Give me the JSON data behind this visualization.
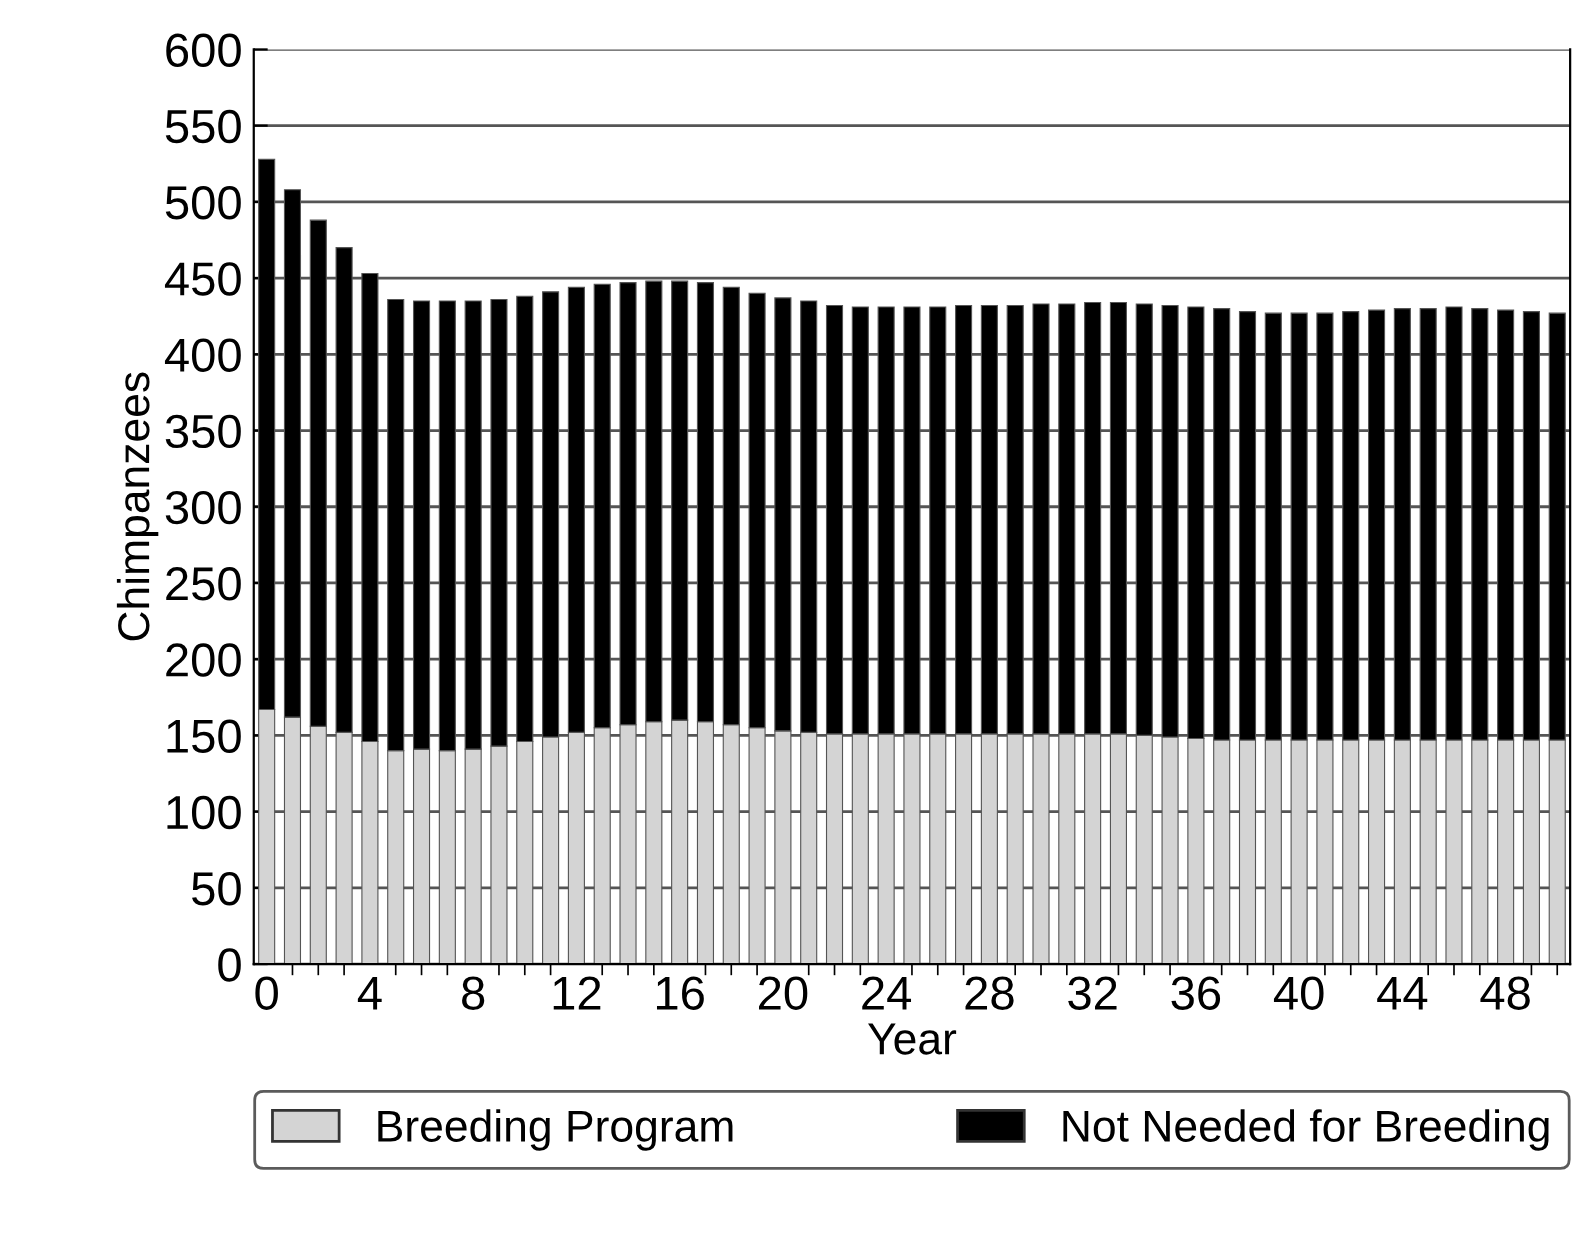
{
  "chart_data": {
    "type": "bar",
    "stacked": true,
    "xlabel": "Year",
    "ylabel": "Chimpanzees",
    "x": [
      0,
      1,
      2,
      3,
      4,
      5,
      6,
      7,
      8,
      9,
      10,
      11,
      12,
      13,
      14,
      15,
      16,
      17,
      18,
      19,
      20,
      21,
      22,
      23,
      24,
      25,
      26,
      27,
      28,
      29,
      30,
      31,
      32,
      33,
      34,
      35,
      36,
      37,
      38,
      39,
      40,
      41,
      42,
      43,
      44,
      45,
      46,
      47,
      48,
      49,
      50
    ],
    "series": [
      {
        "name": "Breeding Program",
        "color": "#d4d4d4",
        "values": [
          167,
          162,
          156,
          152,
          146,
          140,
          141,
          140,
          141,
          143,
          146,
          149,
          152,
          155,
          157,
          159,
          160,
          159,
          157,
          155,
          153,
          152,
          151,
          151,
          151,
          151,
          151,
          151,
          151,
          151,
          151,
          151,
          151,
          151,
          150,
          149,
          148,
          147,
          147,
          147,
          147,
          147,
          147,
          147,
          147,
          147,
          147,
          147,
          147,
          147,
          147
        ]
      },
      {
        "name": "Not Needed for Breeding",
        "color": "#000000",
        "values": [
          361,
          346,
          332,
          318,
          307,
          296,
          294,
          295,
          294,
          293,
          292,
          292,
          292,
          291,
          290,
          289,
          288,
          288,
          287,
          285,
          284,
          283,
          281,
          280,
          280,
          280,
          280,
          281,
          281,
          281,
          282,
          282,
          283,
          283,
          283,
          283,
          283,
          283,
          281,
          280,
          280,
          280,
          281,
          282,
          283,
          283,
          284,
          283,
          282,
          281,
          280
        ]
      }
    ],
    "xlim": [
      -0.5,
      50.5
    ],
    "xticks": [
      0,
      4,
      8,
      12,
      16,
      20,
      24,
      28,
      32,
      36,
      40,
      44,
      48
    ],
    "ylim": [
      0,
      600
    ],
    "yticks": [
      0,
      50,
      100,
      150,
      200,
      250,
      300,
      350,
      400,
      450,
      500,
      550,
      600
    ],
    "grid": "y",
    "legend": "bottom"
  }
}
